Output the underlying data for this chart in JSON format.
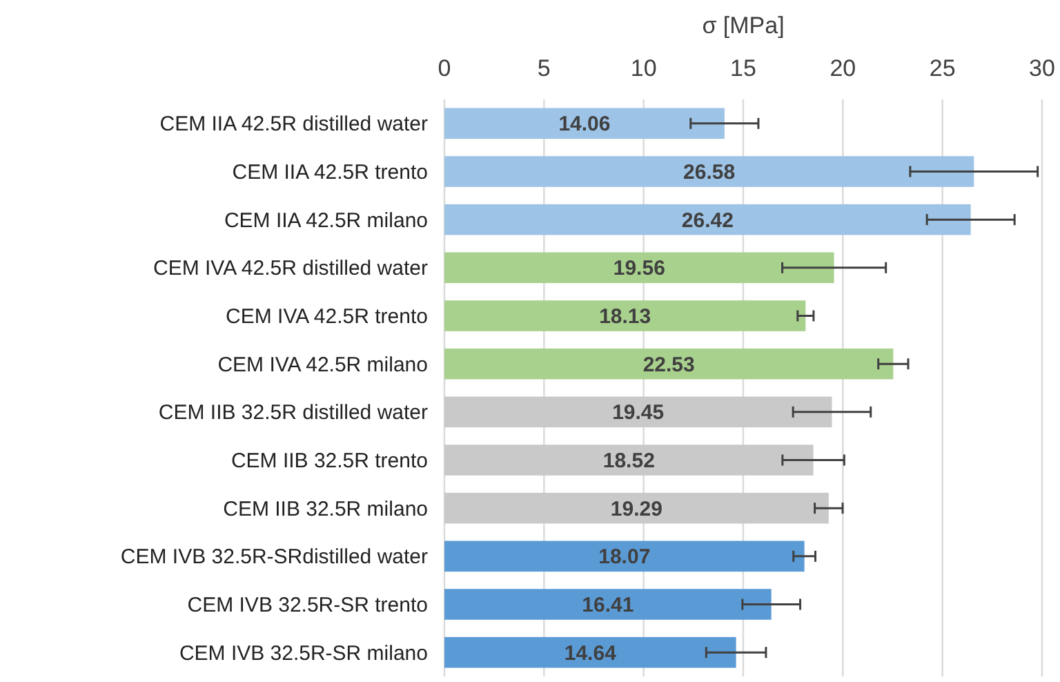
{
  "chart_data": {
    "type": "bar",
    "orientation": "horizontal",
    "xlabel": "σ [MPa]",
    "categories": [
      "CEM IIA 42.5R distilled water",
      "CEM IIA 42.5R trento",
      "CEM IIA 42.5R milano",
      "CEM IVA 42.5R distilled water",
      "CEM IVA 42.5R trento",
      "CEM IVA 42.5R milano",
      "CEM IIB 32.5R distilled water",
      "CEM IIB 32.5R trento",
      "CEM IIB 32.5R milano",
      "CEM IVB 32.5R-SRdistilled water",
      "CEM IVB 32.5R-SR trento",
      "CEM IVB 32.5R-SR milano"
    ],
    "values": [
      14.06,
      26.58,
      26.42,
      19.56,
      18.13,
      22.53,
      19.45,
      18.52,
      19.29,
      18.07,
      16.41,
      14.64
    ],
    "errors": [
      1.7,
      3.2,
      2.2,
      2.6,
      0.4,
      0.75,
      1.95,
      1.55,
      0.7,
      0.55,
      1.45,
      1.5
    ],
    "colors": [
      "#9dc3e6",
      "#9dc3e6",
      "#9dc3e6",
      "#a9d18e",
      "#a9d18e",
      "#a9d18e",
      "#c9c9c9",
      "#c9c9c9",
      "#c9c9c9",
      "#5b9bd5",
      "#5b9bd5",
      "#5b9bd5"
    ],
    "xlim": [
      0,
      30
    ],
    "xticks": [
      0,
      5,
      10,
      15,
      20,
      25,
      30
    ],
    "grid": "x",
    "data_labels": true
  }
}
